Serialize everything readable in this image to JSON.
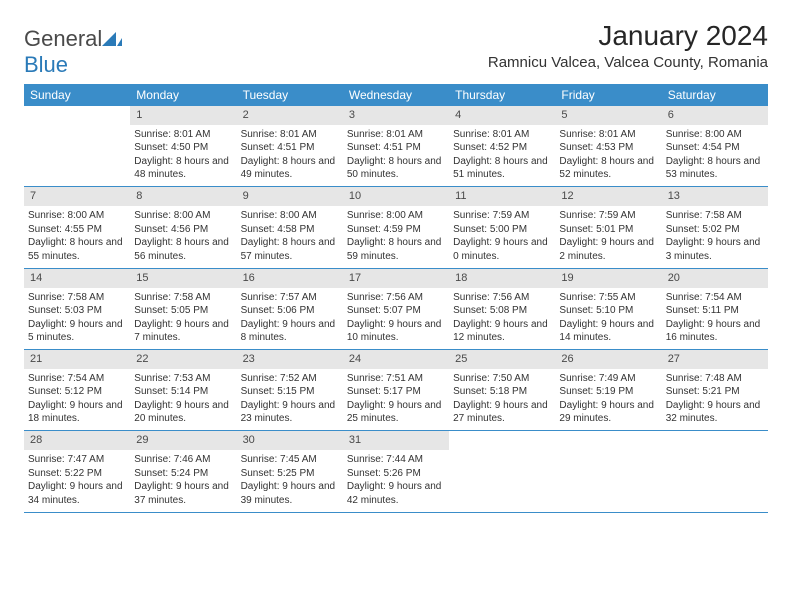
{
  "logo": {
    "part1": "General",
    "part2": "Blue"
  },
  "title": "January 2024",
  "location": "Ramnicu Valcea, Valcea County, Romania",
  "weekdays": [
    "Sunday",
    "Monday",
    "Tuesday",
    "Wednesday",
    "Thursday",
    "Friday",
    "Saturday"
  ],
  "colors": {
    "header_bg": "#3a8dc9",
    "header_text": "#ffffff",
    "daynum_bg": "#e6e6e6",
    "rule": "#3a8dc9",
    "logo_blue": "#2a7ab8"
  },
  "weeks": [
    {
      "nums": [
        "",
        "1",
        "2",
        "3",
        "4",
        "5",
        "6"
      ],
      "cells": [
        null,
        {
          "sunrise": "8:01 AM",
          "sunset": "4:50 PM",
          "daylight": "8 hours and 48 minutes."
        },
        {
          "sunrise": "8:01 AM",
          "sunset": "4:51 PM",
          "daylight": "8 hours and 49 minutes."
        },
        {
          "sunrise": "8:01 AM",
          "sunset": "4:51 PM",
          "daylight": "8 hours and 50 minutes."
        },
        {
          "sunrise": "8:01 AM",
          "sunset": "4:52 PM",
          "daylight": "8 hours and 51 minutes."
        },
        {
          "sunrise": "8:01 AM",
          "sunset": "4:53 PM",
          "daylight": "8 hours and 52 minutes."
        },
        {
          "sunrise": "8:00 AM",
          "sunset": "4:54 PM",
          "daylight": "8 hours and 53 minutes."
        }
      ]
    },
    {
      "nums": [
        "7",
        "8",
        "9",
        "10",
        "11",
        "12",
        "13"
      ],
      "cells": [
        {
          "sunrise": "8:00 AM",
          "sunset": "4:55 PM",
          "daylight": "8 hours and 55 minutes."
        },
        {
          "sunrise": "8:00 AM",
          "sunset": "4:56 PM",
          "daylight": "8 hours and 56 minutes."
        },
        {
          "sunrise": "8:00 AM",
          "sunset": "4:58 PM",
          "daylight": "8 hours and 57 minutes."
        },
        {
          "sunrise": "8:00 AM",
          "sunset": "4:59 PM",
          "daylight": "8 hours and 59 minutes."
        },
        {
          "sunrise": "7:59 AM",
          "sunset": "5:00 PM",
          "daylight": "9 hours and 0 minutes."
        },
        {
          "sunrise": "7:59 AM",
          "sunset": "5:01 PM",
          "daylight": "9 hours and 2 minutes."
        },
        {
          "sunrise": "7:58 AM",
          "sunset": "5:02 PM",
          "daylight": "9 hours and 3 minutes."
        }
      ]
    },
    {
      "nums": [
        "14",
        "15",
        "16",
        "17",
        "18",
        "19",
        "20"
      ],
      "cells": [
        {
          "sunrise": "7:58 AM",
          "sunset": "5:03 PM",
          "daylight": "9 hours and 5 minutes."
        },
        {
          "sunrise": "7:58 AM",
          "sunset": "5:05 PM",
          "daylight": "9 hours and 7 minutes."
        },
        {
          "sunrise": "7:57 AM",
          "sunset": "5:06 PM",
          "daylight": "9 hours and 8 minutes."
        },
        {
          "sunrise": "7:56 AM",
          "sunset": "5:07 PM",
          "daylight": "9 hours and 10 minutes."
        },
        {
          "sunrise": "7:56 AM",
          "sunset": "5:08 PM",
          "daylight": "9 hours and 12 minutes."
        },
        {
          "sunrise": "7:55 AM",
          "sunset": "5:10 PM",
          "daylight": "9 hours and 14 minutes."
        },
        {
          "sunrise": "7:54 AM",
          "sunset": "5:11 PM",
          "daylight": "9 hours and 16 minutes."
        }
      ]
    },
    {
      "nums": [
        "21",
        "22",
        "23",
        "24",
        "25",
        "26",
        "27"
      ],
      "cells": [
        {
          "sunrise": "7:54 AM",
          "sunset": "5:12 PM",
          "daylight": "9 hours and 18 minutes."
        },
        {
          "sunrise": "7:53 AM",
          "sunset": "5:14 PM",
          "daylight": "9 hours and 20 minutes."
        },
        {
          "sunrise": "7:52 AM",
          "sunset": "5:15 PM",
          "daylight": "9 hours and 23 minutes."
        },
        {
          "sunrise": "7:51 AM",
          "sunset": "5:17 PM",
          "daylight": "9 hours and 25 minutes."
        },
        {
          "sunrise": "7:50 AM",
          "sunset": "5:18 PM",
          "daylight": "9 hours and 27 minutes."
        },
        {
          "sunrise": "7:49 AM",
          "sunset": "5:19 PM",
          "daylight": "9 hours and 29 minutes."
        },
        {
          "sunrise": "7:48 AM",
          "sunset": "5:21 PM",
          "daylight": "9 hours and 32 minutes."
        }
      ]
    },
    {
      "nums": [
        "28",
        "29",
        "30",
        "31",
        "",
        "",
        ""
      ],
      "cells": [
        {
          "sunrise": "7:47 AM",
          "sunset": "5:22 PM",
          "daylight": "9 hours and 34 minutes."
        },
        {
          "sunrise": "7:46 AM",
          "sunset": "5:24 PM",
          "daylight": "9 hours and 37 minutes."
        },
        {
          "sunrise": "7:45 AM",
          "sunset": "5:25 PM",
          "daylight": "9 hours and 39 minutes."
        },
        {
          "sunrise": "7:44 AM",
          "sunset": "5:26 PM",
          "daylight": "9 hours and 42 minutes."
        },
        null,
        null,
        null
      ]
    }
  ],
  "labels": {
    "sunrise": "Sunrise:",
    "sunset": "Sunset:",
    "daylight": "Daylight:"
  }
}
